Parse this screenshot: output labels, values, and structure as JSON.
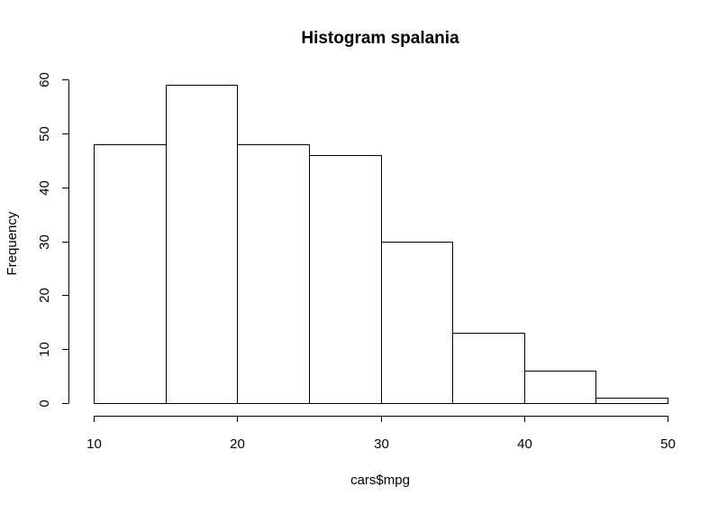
{
  "chart_data": {
    "type": "bar",
    "title": "Histogram spalania",
    "xlabel": "cars$mpg",
    "ylabel": "Frequency",
    "bin_edges": [
      10,
      15,
      20,
      25,
      30,
      35,
      40,
      45,
      50
    ],
    "values": [
      48,
      59,
      48,
      46,
      30,
      13,
      6,
      1
    ],
    "xlim": [
      10,
      50
    ],
    "ylim": [
      0,
      60
    ],
    "x_ticks": [
      10,
      20,
      30,
      40,
      50
    ],
    "y_ticks": [
      0,
      10,
      20,
      30,
      40,
      50,
      60
    ],
    "grid": false,
    "bar_fill": "#ffffff",
    "bar_stroke": "#000000"
  }
}
